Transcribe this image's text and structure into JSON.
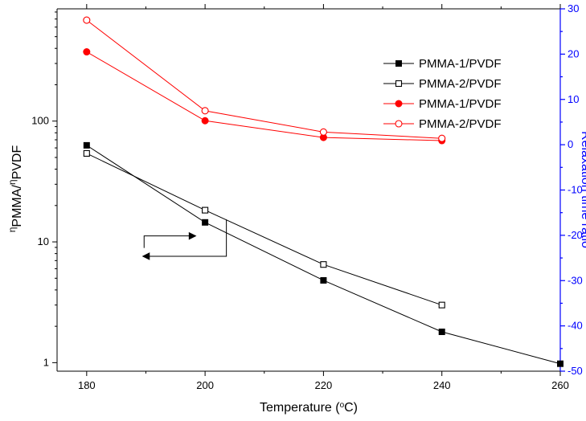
{
  "chart_data": {
    "type": "line",
    "xlabel": "Temperature (°C)",
    "xlabel_parts": {
      "prefix": "Temperature (",
      "superscript": "o",
      "suffix": "C)"
    },
    "ylabel_left": "ηPMMA/ηPVDF",
    "ylabel_left_parts": {
      "eta1": "η",
      "sub1": "PMMA",
      "slash": "/",
      "eta2": "η",
      "sub2": "PVDF"
    },
    "ylabel_right": "Relaxation time ratio",
    "xlim": [
      175,
      260
    ],
    "ylim_left": [
      0.85,
      850
    ],
    "yscale_left": "log",
    "ylim_right": [
      -50,
      30
    ],
    "x_ticks": [
      180,
      200,
      220,
      240,
      260
    ],
    "x_tick_labels": [
      "180",
      "200",
      "220",
      "240",
      "260"
    ],
    "y_left_ticks": [
      1,
      10,
      100
    ],
    "y_left_tick_labels": [
      "1",
      "10",
      "100"
    ],
    "y_right_ticks": [
      30,
      20,
      10,
      0,
      -10,
      -20,
      -30,
      -40,
      -50
    ],
    "y_right_tick_labels": [
      "30",
      "20",
      "10",
      "0",
      "-10",
      "-20",
      "-30",
      "-40",
      "-50"
    ],
    "colors": {
      "black_series": "#000000",
      "red_series": "#ff0000",
      "right_axis": "#0000ff"
    },
    "series": [
      {
        "name": "PMMA-1/PVDF",
        "axis": "left",
        "marker": "filled-square",
        "color": "#000000",
        "x": [
          180,
          200,
          220,
          240,
          260
        ],
        "y": [
          63,
          14.5,
          4.8,
          1.8,
          0.98
        ]
      },
      {
        "name": "PMMA-2/PVDF",
        "axis": "left",
        "marker": "open-square",
        "color": "#000000",
        "x": [
          180,
          200,
          220,
          240
        ],
        "y": [
          54,
          18.3,
          6.5,
          3.0
        ]
      },
      {
        "name": "PMMA-1/PVDF",
        "axis": "right",
        "marker": "filled-circle",
        "color": "#ff0000",
        "x": [
          180,
          200,
          220,
          240
        ],
        "y": [
          20.5,
          5.3,
          1.6,
          0.9
        ]
      },
      {
        "name": "PMMA-2/PVDF",
        "axis": "right",
        "marker": "open-circle",
        "color": "#ff0000",
        "x": [
          180,
          200,
          220,
          240
        ],
        "y": [
          27.5,
          7.5,
          2.8,
          1.4
        ]
      }
    ],
    "legend": {
      "placement": "top-right"
    },
    "annotations": [
      {
        "name": "right-axis-indicator-arrow",
        "points": [
          [
            189.7,
            8.9
          ],
          [
            189.7,
            11.2
          ],
          [
            198.4,
            11.2
          ]
        ],
        "direction": "right"
      },
      {
        "name": "left-axis-indicator-arrow",
        "points": [
          [
            203.6,
            15.3
          ],
          [
            203.6,
            7.6
          ],
          [
            189.5,
            7.6
          ]
        ],
        "direction": "left"
      }
    ]
  }
}
